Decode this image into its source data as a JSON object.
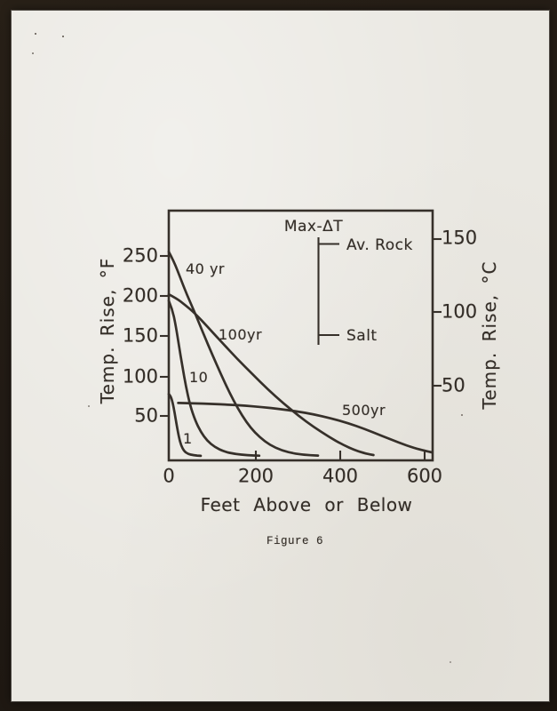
{
  "figure": {
    "caption": "Figure 6"
  },
  "chart_data": {
    "type": "line",
    "title": "",
    "xlabel": "Feet Above or Below",
    "ylabel_left": "Temp. Rise, °F",
    "ylabel_right": "Temp. Rise, °C",
    "x_tick_labels": [
      "0",
      "200",
      "400",
      "600"
    ],
    "y_tick_labels_left": [
      "250",
      "200",
      "150",
      "100",
      "50"
    ],
    "y_tick_labels_right": [
      "150",
      "100",
      "50"
    ],
    "x_range_feet": [
      0,
      620
    ],
    "y_range_degF": [
      0,
      285
    ],
    "grid": false,
    "legend": {
      "title": "Max-ΔT",
      "top_label": "Av. Rock",
      "bottom_label": "Salt"
    },
    "series": [
      {
        "name": "1 yr",
        "label": "1",
        "points_feet_degF": [
          [
            0,
            78
          ],
          [
            4,
            76
          ],
          [
            9,
            68
          ],
          [
            14,
            54
          ],
          [
            19,
            38
          ],
          [
            24,
            24
          ],
          [
            29,
            14
          ],
          [
            36,
            7
          ],
          [
            45,
            3.5
          ],
          [
            58,
            2
          ],
          [
            75,
            1.2
          ]
        ]
      },
      {
        "name": "10 yr",
        "label": "10",
        "points_feet_degF": [
          [
            0,
            194
          ],
          [
            8,
            184
          ],
          [
            16,
            164
          ],
          [
            24,
            138
          ],
          [
            32,
            112
          ],
          [
            40,
            88
          ],
          [
            50,
            64
          ],
          [
            62,
            45
          ],
          [
            75,
            31
          ],
          [
            90,
            20
          ],
          [
            108,
            12
          ],
          [
            130,
            6.5
          ],
          [
            155,
            3.5
          ],
          [
            185,
            2
          ],
          [
            212,
            1.4
          ]
        ]
      },
      {
        "name": "40 yr",
        "label": "40 yr",
        "points_feet_degF": [
          [
            0,
            255
          ],
          [
            12,
            243
          ],
          [
            26,
            224
          ],
          [
            42,
            202
          ],
          [
            62,
            178
          ],
          [
            82,
            152
          ],
          [
            102,
            127
          ],
          [
            122,
            103
          ],
          [
            142,
            80
          ],
          [
            162,
            60
          ],
          [
            182,
            43
          ],
          [
            202,
            30
          ],
          [
            225,
            19
          ],
          [
            250,
            11
          ],
          [
            280,
            5.5
          ],
          [
            315,
            2.5
          ],
          [
            350,
            1.5
          ]
        ]
      },
      {
        "name": "100 yr",
        "label": "100yr",
        "points_feet_degF": [
          [
            0,
            202
          ],
          [
            18,
            197
          ],
          [
            38,
            189
          ],
          [
            62,
            178
          ],
          [
            92,
            161
          ],
          [
            125,
            142
          ],
          [
            160,
            122
          ],
          [
            196,
            103
          ],
          [
            232,
            84
          ],
          [
            268,
            67
          ],
          [
            304,
            51
          ],
          [
            340,
            37
          ],
          [
            375,
            25
          ],
          [
            408,
            15
          ],
          [
            438,
            8
          ],
          [
            462,
            4
          ],
          [
            480,
            2.2
          ]
        ]
      },
      {
        "name": "500 yr",
        "label": "500yr",
        "points_feet_degF": [
          [
            22,
            67
          ],
          [
            60,
            66.5
          ],
          [
            100,
            65.8
          ],
          [
            140,
            64.8
          ],
          [
            180,
            63.5
          ],
          [
            220,
            61.8
          ],
          [
            260,
            59.5
          ],
          [
            300,
            56.5
          ],
          [
            340,
            52.8
          ],
          [
            380,
            48
          ],
          [
            420,
            42
          ],
          [
            460,
            34.5
          ],
          [
            500,
            26
          ],
          [
            540,
            17.5
          ],
          [
            575,
            11
          ],
          [
            600,
            7.5
          ],
          [
            617,
            5.5
          ]
        ]
      }
    ]
  }
}
